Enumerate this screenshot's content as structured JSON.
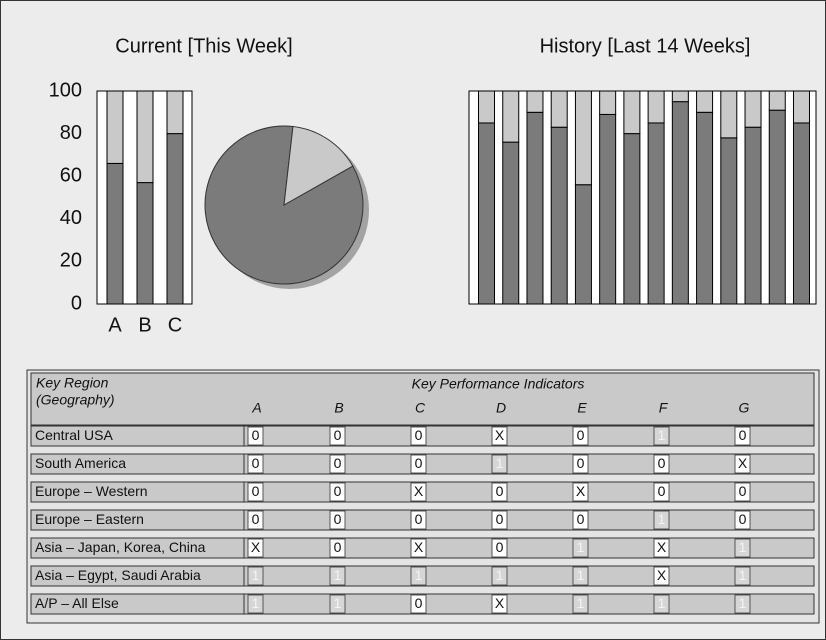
{
  "chart_data": [
    {
      "type": "bar",
      "stacked": true,
      "title": "Current [This Week]",
      "categories": [
        "A",
        "B",
        "C"
      ],
      "series": [
        {
          "color": "#7b7b7b",
          "values": [
            66,
            57,
            80
          ]
        },
        {
          "color": "#c9c9c9",
          "values": [
            34,
            43,
            20
          ]
        }
      ],
      "ylim": [
        0,
        100
      ],
      "yticks": [
        0,
        20,
        40,
        60,
        80,
        100
      ]
    },
    {
      "type": "pie",
      "values": [
        85,
        15
      ],
      "colors": [
        "#7b7b7b",
        "#c9c9c9"
      ]
    },
    {
      "type": "bar",
      "stacked": true,
      "title": "History [Last 14 Weeks]",
      "series": [
        {
          "color": "#7b7b7b",
          "values": [
            85,
            76,
            90,
            83,
            56,
            89,
            80,
            85,
            95,
            90,
            78,
            83,
            91,
            85
          ]
        },
        {
          "color": "#c9c9c9",
          "values": [
            15,
            24,
            10,
            17,
            44,
            11,
            20,
            15,
            5,
            10,
            22,
            17,
            9,
            15
          ]
        }
      ],
      "ylim": [
        0,
        100
      ]
    }
  ],
  "table": {
    "region_header": [
      "Key Region",
      "(Geography)"
    ],
    "kpi_header": "Key Performance Indicators",
    "columns": [
      "A",
      "B",
      "C",
      "D",
      "E",
      "F",
      "G"
    ],
    "rows": [
      {
        "region": "Central USA",
        "cells": [
          "0",
          "0",
          "0",
          "X",
          "0",
          "1",
          "0"
        ]
      },
      {
        "region": "South America",
        "cells": [
          "0",
          "0",
          "0",
          "1",
          "0",
          "0",
          "X"
        ]
      },
      {
        "region": "Europe – Western",
        "cells": [
          "0",
          "0",
          "X",
          "0",
          "X",
          "0",
          "0"
        ]
      },
      {
        "region": "Europe – Eastern",
        "cells": [
          "0",
          "0",
          "0",
          "0",
          "0",
          "1",
          "0"
        ]
      },
      {
        "region": "Asia – Japan, Korea, China",
        "cells": [
          "X",
          "0",
          "X",
          "0",
          "1",
          "X",
          "1"
        ]
      },
      {
        "region": "Asia – Egypt, Saudi Arabia",
        "cells": [
          "1",
          "1",
          "1",
          "1",
          "1",
          "X",
          "1"
        ]
      },
      {
        "region": "A/P – All Else",
        "cells": [
          "1",
          "1",
          "0",
          "X",
          "1",
          "1",
          "1"
        ]
      }
    ]
  }
}
